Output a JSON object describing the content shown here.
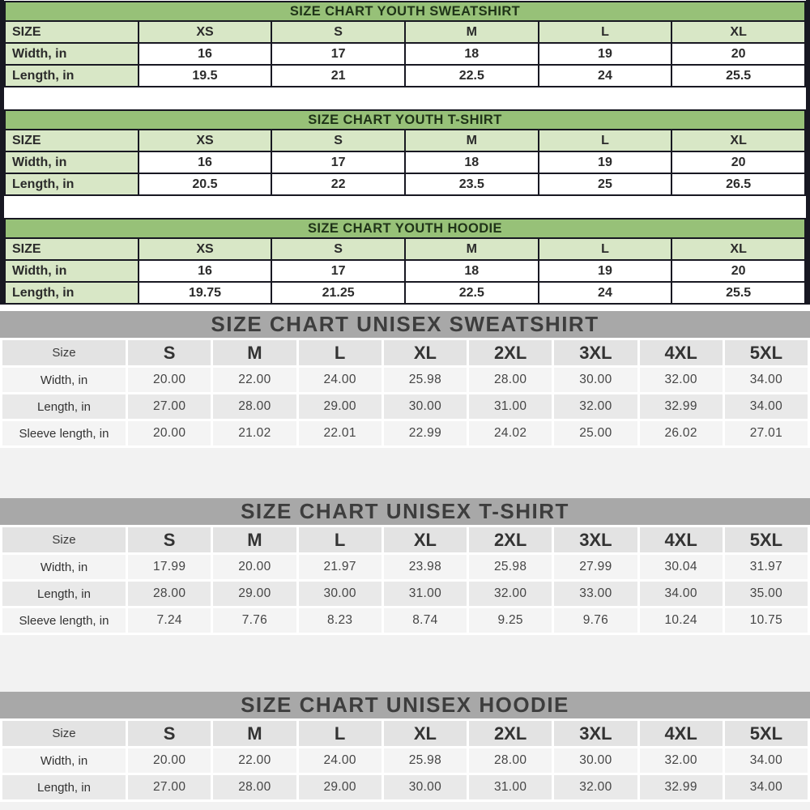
{
  "style": {
    "youth_title_bg": "#97c178",
    "youth_title_text": "#1f3318",
    "youth_header_bg": "#d8e7c6",
    "youth_cell_bg": "#ffffff",
    "youth_border": "#181822",
    "unisex_band_bg": "#a8a8a8",
    "unisex_band_text": "#3d3d3d",
    "unisex_header_bg": "#e3e3e3",
    "unisex_row_light": "#f4f4f4",
    "unisex_row_dark": "#e9e9e9"
  },
  "youth_charts": [
    {
      "name": "youth-sweatshirt",
      "title": "SIZE CHART YOUTH SWEATSHIRT",
      "columns": [
        "SIZE",
        "XS",
        "S",
        "M",
        "L",
        "XL"
      ],
      "rows": [
        {
          "label": "Width, in",
          "values": [
            "16",
            "17",
            "18",
            "19",
            "20"
          ]
        },
        {
          "label": "Length, in",
          "values": [
            "19.5",
            "21",
            "22.5",
            "24",
            "25.5"
          ]
        }
      ]
    },
    {
      "name": "youth-tshirt",
      "title": "SIZE CHART YOUTH T-SHIRT",
      "columns": [
        "SIZE",
        "XS",
        "S",
        "M",
        "L",
        "XL"
      ],
      "rows": [
        {
          "label": "Width, in",
          "values": [
            "16",
            "17",
            "18",
            "19",
            "20"
          ]
        },
        {
          "label": "Length, in",
          "values": [
            "20.5",
            "22",
            "23.5",
            "25",
            "26.5"
          ]
        }
      ]
    },
    {
      "name": "youth-hoodie",
      "title": "SIZE CHART YOUTH HOODIE",
      "columns": [
        "SIZE",
        "XS",
        "S",
        "M",
        "L",
        "XL"
      ],
      "rows": [
        {
          "label": "Width, in",
          "values": [
            "16",
            "17",
            "18",
            "19",
            "20"
          ]
        },
        {
          "label": "Length, in",
          "values": [
            "19.75",
            "21.25",
            "22.5",
            "24",
            "25.5"
          ]
        }
      ]
    }
  ],
  "unisex_charts": [
    {
      "name": "unisex-sweatshirt",
      "title": "SIZE CHART UNISEX SWEATSHIRT",
      "columns": [
        "Size",
        "S",
        "M",
        "L",
        "XL",
        "2XL",
        "3XL",
        "4XL",
        "5XL"
      ],
      "rows": [
        {
          "label": "Width, in",
          "values": [
            "20.00",
            "22.00",
            "24.00",
            "25.98",
            "28.00",
            "30.00",
            "32.00",
            "34.00"
          ]
        },
        {
          "label": "Length, in",
          "values": [
            "27.00",
            "28.00",
            "29.00",
            "30.00",
            "31.00",
            "32.00",
            "32.99",
            "34.00"
          ]
        },
        {
          "label": "Sleeve length, in",
          "values": [
            "20.00",
            "21.02",
            "22.01",
            "22.99",
            "24.02",
            "25.00",
            "26.02",
            "27.01"
          ]
        }
      ]
    },
    {
      "name": "unisex-tshirt",
      "title": "SIZE CHART UNISEX T-SHIRT",
      "columns": [
        "Size",
        "S",
        "M",
        "L",
        "XL",
        "2XL",
        "3XL",
        "4XL",
        "5XL"
      ],
      "rows": [
        {
          "label": "Width, in",
          "values": [
            "17.99",
            "20.00",
            "21.97",
            "23.98",
            "25.98",
            "27.99",
            "30.04",
            "31.97"
          ]
        },
        {
          "label": "Length, in",
          "values": [
            "28.00",
            "29.00",
            "30.00",
            "31.00",
            "32.00",
            "33.00",
            "34.00",
            "35.00"
          ]
        },
        {
          "label": "Sleeve length, in",
          "values": [
            "7.24",
            "7.76",
            "8.23",
            "8.74",
            "9.25",
            "9.76",
            "10.24",
            "10.75"
          ]
        }
      ]
    },
    {
      "name": "unisex-hoodie",
      "title": "SIZE CHART UNISEX HOODIE",
      "columns": [
        "Size",
        "S",
        "M",
        "L",
        "XL",
        "2XL",
        "3XL",
        "4XL",
        "5XL"
      ],
      "rows": [
        {
          "label": "Width, in",
          "values": [
            "20.00",
            "22.00",
            "24.00",
            "25.98",
            "28.00",
            "30.00",
            "32.00",
            "34.00"
          ]
        },
        {
          "label": "Length, in",
          "values": [
            "27.00",
            "28.00",
            "29.00",
            "30.00",
            "31.00",
            "32.00",
            "32.99",
            "34.00"
          ]
        }
      ]
    }
  ]
}
